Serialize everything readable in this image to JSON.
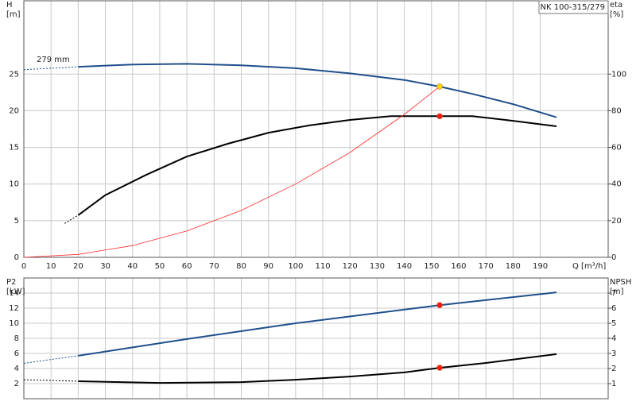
{
  "chart_data": [
    {
      "type": "line",
      "title": "NK 100-315/279",
      "ylabel": [
        "H",
        "[m]"
      ],
      "y2label": [
        "eta",
        "[%]"
      ],
      "xlabel": "Q [m³/h]",
      "annotations": [
        "279 mm"
      ],
      "xlim": [
        0,
        215
      ],
      "xticks": [
        0,
        10,
        20,
        30,
        40,
        50,
        60,
        70,
        80,
        90,
        100,
        110,
        120,
        130,
        140,
        150,
        160,
        170,
        180,
        190
      ],
      "ylim": [
        0,
        35
      ],
      "yticks": [
        0,
        5,
        10,
        15,
        20,
        25
      ],
      "y2lim": [
        0,
        140
      ],
      "y2ticks": [
        0,
        20,
        40,
        60,
        80,
        100
      ],
      "grid": true,
      "show_xtick_labels": true,
      "series": [
        {
          "color": "#1f4e8c",
          "style": "dashed",
          "x": [
            0,
            20
          ],
          "values": [
            25.6,
            26.0
          ]
        },
        {
          "color": "#1f4e8c",
          "style": "solid",
          "x": [
            20,
            40,
            60,
            80,
            100,
            120,
            140,
            153,
            165,
            180,
            196
          ],
          "values": [
            26.0,
            26.3,
            26.4,
            26.2,
            25.8,
            25.1,
            24.2,
            23.3,
            22.3,
            20.9,
            19.1
          ]
        },
        {
          "color": "#000000",
          "style": "dashed",
          "axis": "y2",
          "x": [
            15,
            20
          ],
          "values": [
            18.5,
            23
          ]
        },
        {
          "color": "#000000",
          "style": "solid",
          "axis": "y2",
          "x": [
            20,
            30,
            45,
            60,
            75,
            90,
            105,
            120,
            135,
            153,
            165,
            180,
            196
          ],
          "values": [
            23,
            34,
            45,
            55,
            62,
            68,
            72,
            75,
            77,
            77,
            77,
            74.5,
            71.5
          ]
        },
        {
          "color": "#ff2a2a",
          "style": "thin",
          "x": [
            0,
            20,
            40,
            60,
            80,
            100,
            120,
            140,
            153
          ],
          "values": [
            0,
            0.4,
            1.6,
            3.6,
            6.4,
            10,
            14.3,
            19.5,
            23.3
          ]
        },
        {
          "color": "#ffd21f",
          "style": "marker",
          "x": [
            153
          ],
          "values": [
            23.3
          ]
        },
        {
          "color": "#ff1a1a",
          "style": "marker",
          "axis": "y2",
          "x": [
            153
          ],
          "values": [
            77
          ]
        }
      ]
    },
    {
      "type": "line",
      "ylabel": [
        "P2",
        "[kW]"
      ],
      "y2label": [
        "NPSH",
        "[m]"
      ],
      "xlim": [
        0,
        215
      ],
      "xticks": [
        0,
        10,
        20,
        30,
        40,
        50,
        60,
        70,
        80,
        90,
        100,
        110,
        120,
        130,
        140,
        150,
        160,
        170,
        180,
        190
      ],
      "ylim": [
        0,
        16
      ],
      "yticks": [
        2,
        4,
        6,
        8,
        10,
        12,
        14
      ],
      "y2lim": [
        0,
        8
      ],
      "y2ticks": [
        1,
        2,
        3,
        4,
        5,
        6,
        7
      ],
      "grid": true,
      "show_xtick_labels": false,
      "series": [
        {
          "color": "#1f4e8c",
          "style": "dashed",
          "x": [
            0,
            20
          ],
          "values": [
            4.7,
            5.7
          ]
        },
        {
          "color": "#1f4e8c",
          "style": "solid",
          "x": [
            20,
            60,
            100,
            153,
            196
          ],
          "values": [
            5.7,
            7.9,
            10.0,
            12.4,
            14.1
          ]
        },
        {
          "color": "#000000",
          "style": "dashed",
          "axis": "y2",
          "x": [
            0,
            20
          ],
          "values": [
            1.26,
            1.16
          ]
        },
        {
          "color": "#000000",
          "style": "solid",
          "axis": "y2",
          "x": [
            20,
            50,
            80,
            100,
            120,
            140,
            153,
            170,
            196
          ],
          "values": [
            1.16,
            1.05,
            1.1,
            1.26,
            1.47,
            1.74,
            2.05,
            2.37,
            2.95
          ]
        },
        {
          "color": "#ff1a1a",
          "style": "marker",
          "x": [
            153
          ],
          "values": [
            12.4
          ]
        },
        {
          "color": "#ff1a1a",
          "style": "marker",
          "axis": "y2",
          "x": [
            153
          ],
          "values": [
            2.05
          ]
        }
      ]
    }
  ]
}
